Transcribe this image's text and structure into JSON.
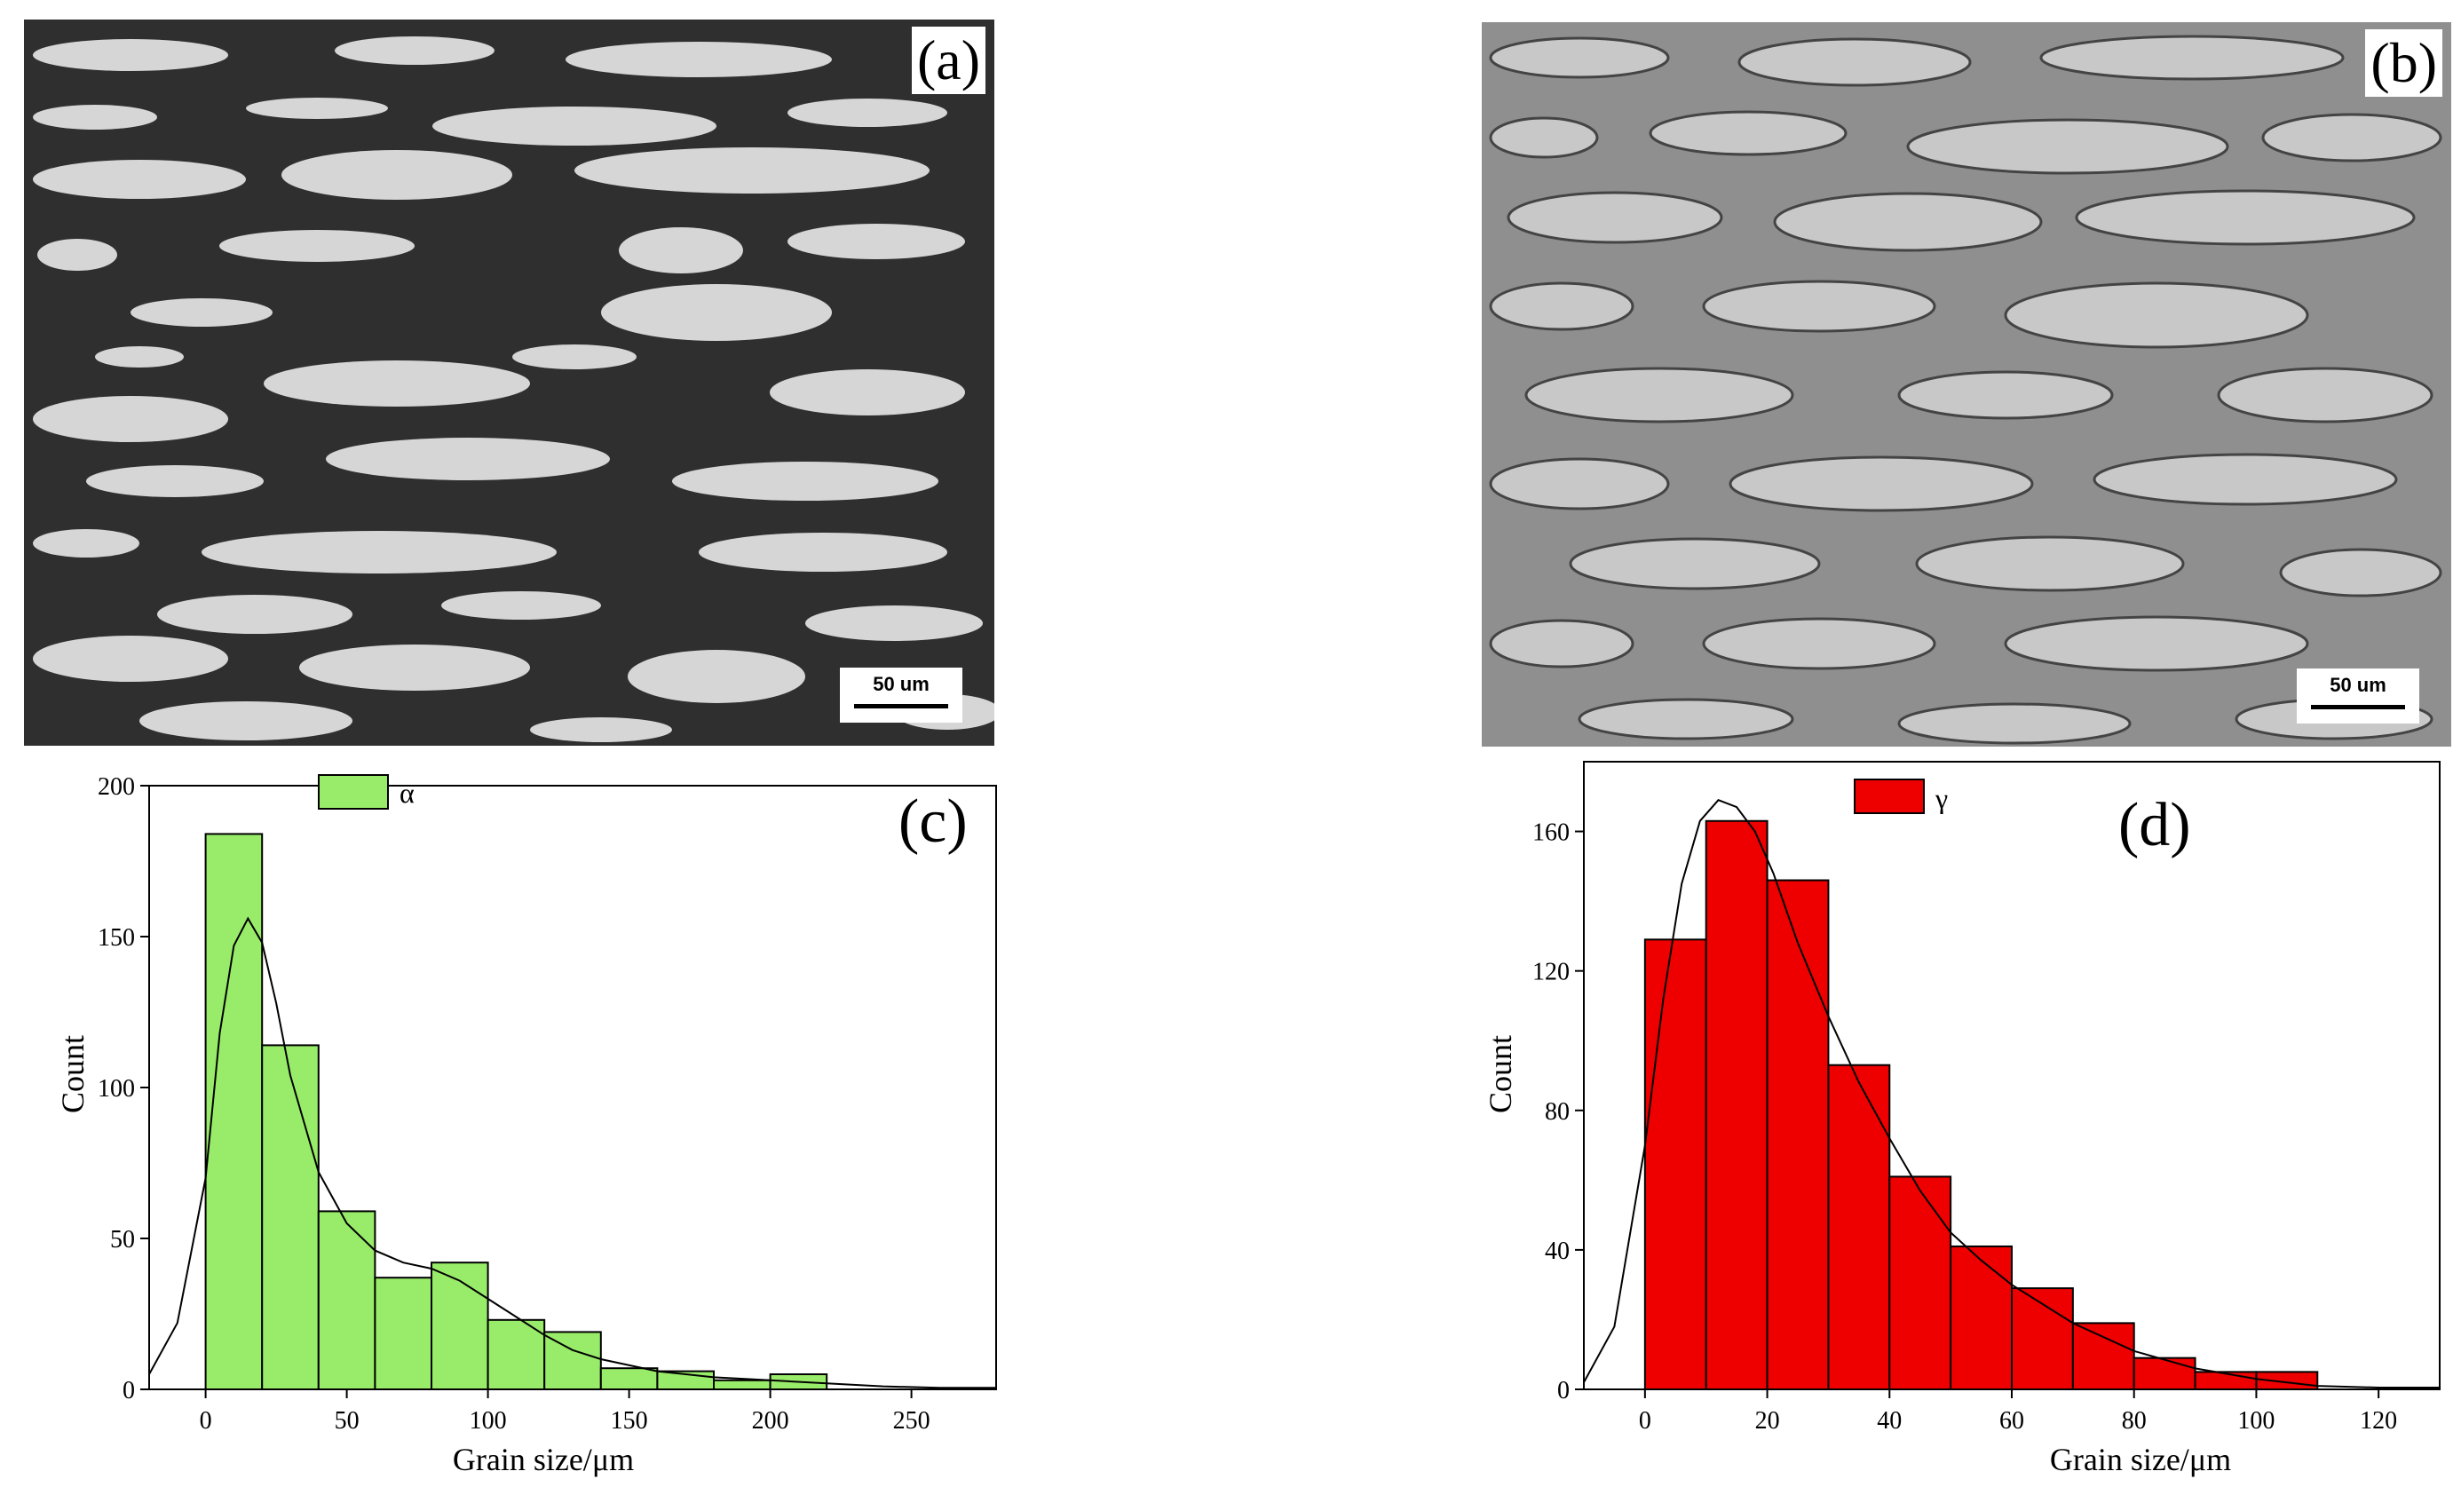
{
  "panels": {
    "a": {
      "label": "(a)",
      "scale_bar": "50 um"
    },
    "b": {
      "label": "(b)",
      "scale_bar": "50 um"
    }
  },
  "colors": {
    "alpha_bar": "#99ec6a",
    "gamma_bar": "#ee0000",
    "axis": "#000000"
  },
  "chart_data": [
    {
      "id": "c",
      "panel_label": "(c)",
      "type": "bar",
      "legend": "α",
      "legend_position": "top-left",
      "xlabel": "Grain size/μm",
      "ylabel": "Count",
      "xlim": [
        -20,
        280
      ],
      "ylim": [
        0,
        200
      ],
      "xticks": [
        0,
        50,
        100,
        150,
        200,
        250
      ],
      "yticks": [
        0,
        50,
        100,
        150,
        200
      ],
      "bin_width": 20,
      "bins": [
        0,
        20,
        40,
        60,
        80,
        100,
        120,
        140,
        160,
        180,
        200
      ],
      "values": [
        184,
        114,
        59,
        37,
        42,
        23,
        19,
        7,
        6,
        3,
        5
      ],
      "fit_curve": {
        "x": [
          -20,
          -10,
          0,
          5,
          10,
          15,
          20,
          25,
          30,
          40,
          50,
          60,
          70,
          80,
          90,
          100,
          110,
          120,
          130,
          140,
          160,
          180,
          200,
          220,
          240,
          260,
          280
        ],
        "y": [
          5,
          22,
          70,
          118,
          147,
          156,
          148,
          128,
          104,
          72,
          55,
          46,
          42,
          40,
          36,
          30,
          24,
          18,
          13,
          10,
          6,
          4,
          3,
          2,
          1,
          0.5,
          0.5
        ]
      }
    },
    {
      "id": "d",
      "panel_label": "(d)",
      "type": "bar",
      "legend": "γ",
      "legend_position": "top-left",
      "xlabel": "Grain size/μm",
      "ylabel": "Count",
      "xlim": [
        -10,
        130
      ],
      "ylim": [
        0,
        180
      ],
      "xticks": [
        0,
        20,
        40,
        60,
        80,
        100,
        120
      ],
      "yticks": [
        0,
        40,
        80,
        120,
        160
      ],
      "bin_width": 10,
      "bins": [
        0,
        10,
        20,
        30,
        40,
        50,
        60,
        70,
        80,
        90,
        100
      ],
      "values": [
        129,
        163,
        146,
        93,
        61,
        41,
        29,
        19,
        9,
        5,
        5
      ],
      "fit_curve": {
        "x": [
          -10,
          -5,
          0,
          3,
          6,
          9,
          12,
          15,
          18,
          21,
          25,
          30,
          35,
          40,
          45,
          50,
          55,
          60,
          70,
          80,
          90,
          100,
          110,
          120,
          130
        ],
        "y": [
          2,
          18,
          70,
          112,
          145,
          163,
          169,
          167,
          160,
          148,
          128,
          107,
          88,
          72,
          57,
          45,
          37,
          30,
          19,
          11,
          6,
          3,
          1,
          0.5,
          0.5
        ]
      }
    }
  ]
}
